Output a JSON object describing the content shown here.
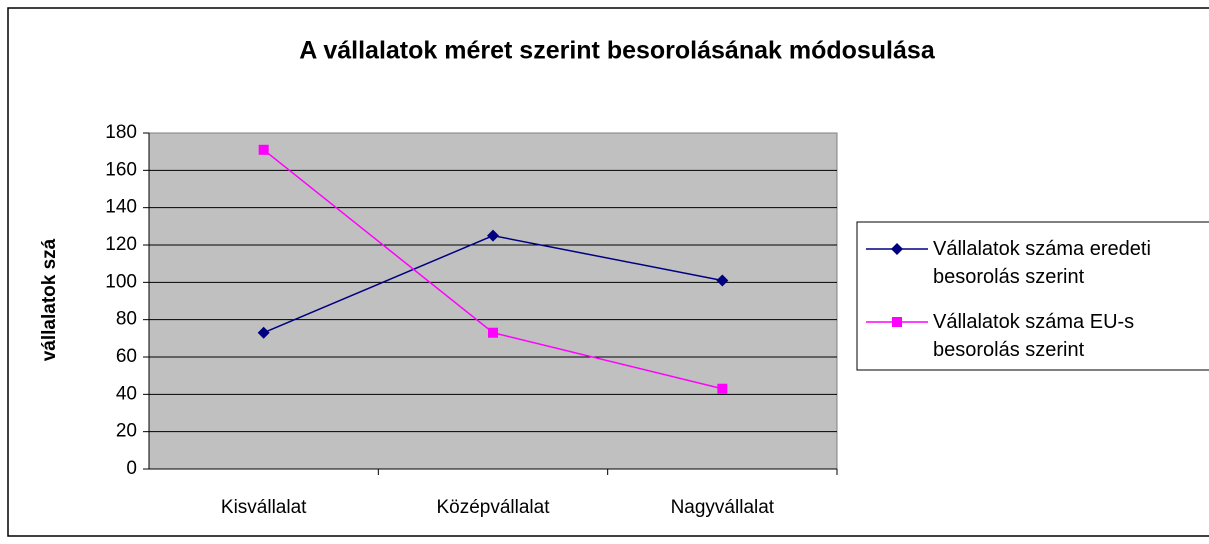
{
  "chart_data": {
    "type": "line",
    "title": "A vállalatok méret szerint besorolásának módosulása",
    "y_label": "vállalatok szá",
    "categories": [
      "Kisvállalat",
      "Középvállalat",
      "Nagyvállalat"
    ],
    "series": [
      {
        "name": "Vállalatok száma eredeti besorolás szerint",
        "color": "#000080",
        "marker": "diamond",
        "values": [
          73,
          125,
          101
        ]
      },
      {
        "name": "Vállalatok száma EU-s besorolás szerint",
        "color": "#ff00ff",
        "marker": "square",
        "values": [
          171,
          73,
          43
        ]
      }
    ],
    "ylim": [
      0,
      180
    ],
    "yticks": [
      0,
      20,
      40,
      60,
      80,
      100,
      120,
      140,
      160,
      180
    ],
    "grid": true,
    "legend": "right"
  }
}
